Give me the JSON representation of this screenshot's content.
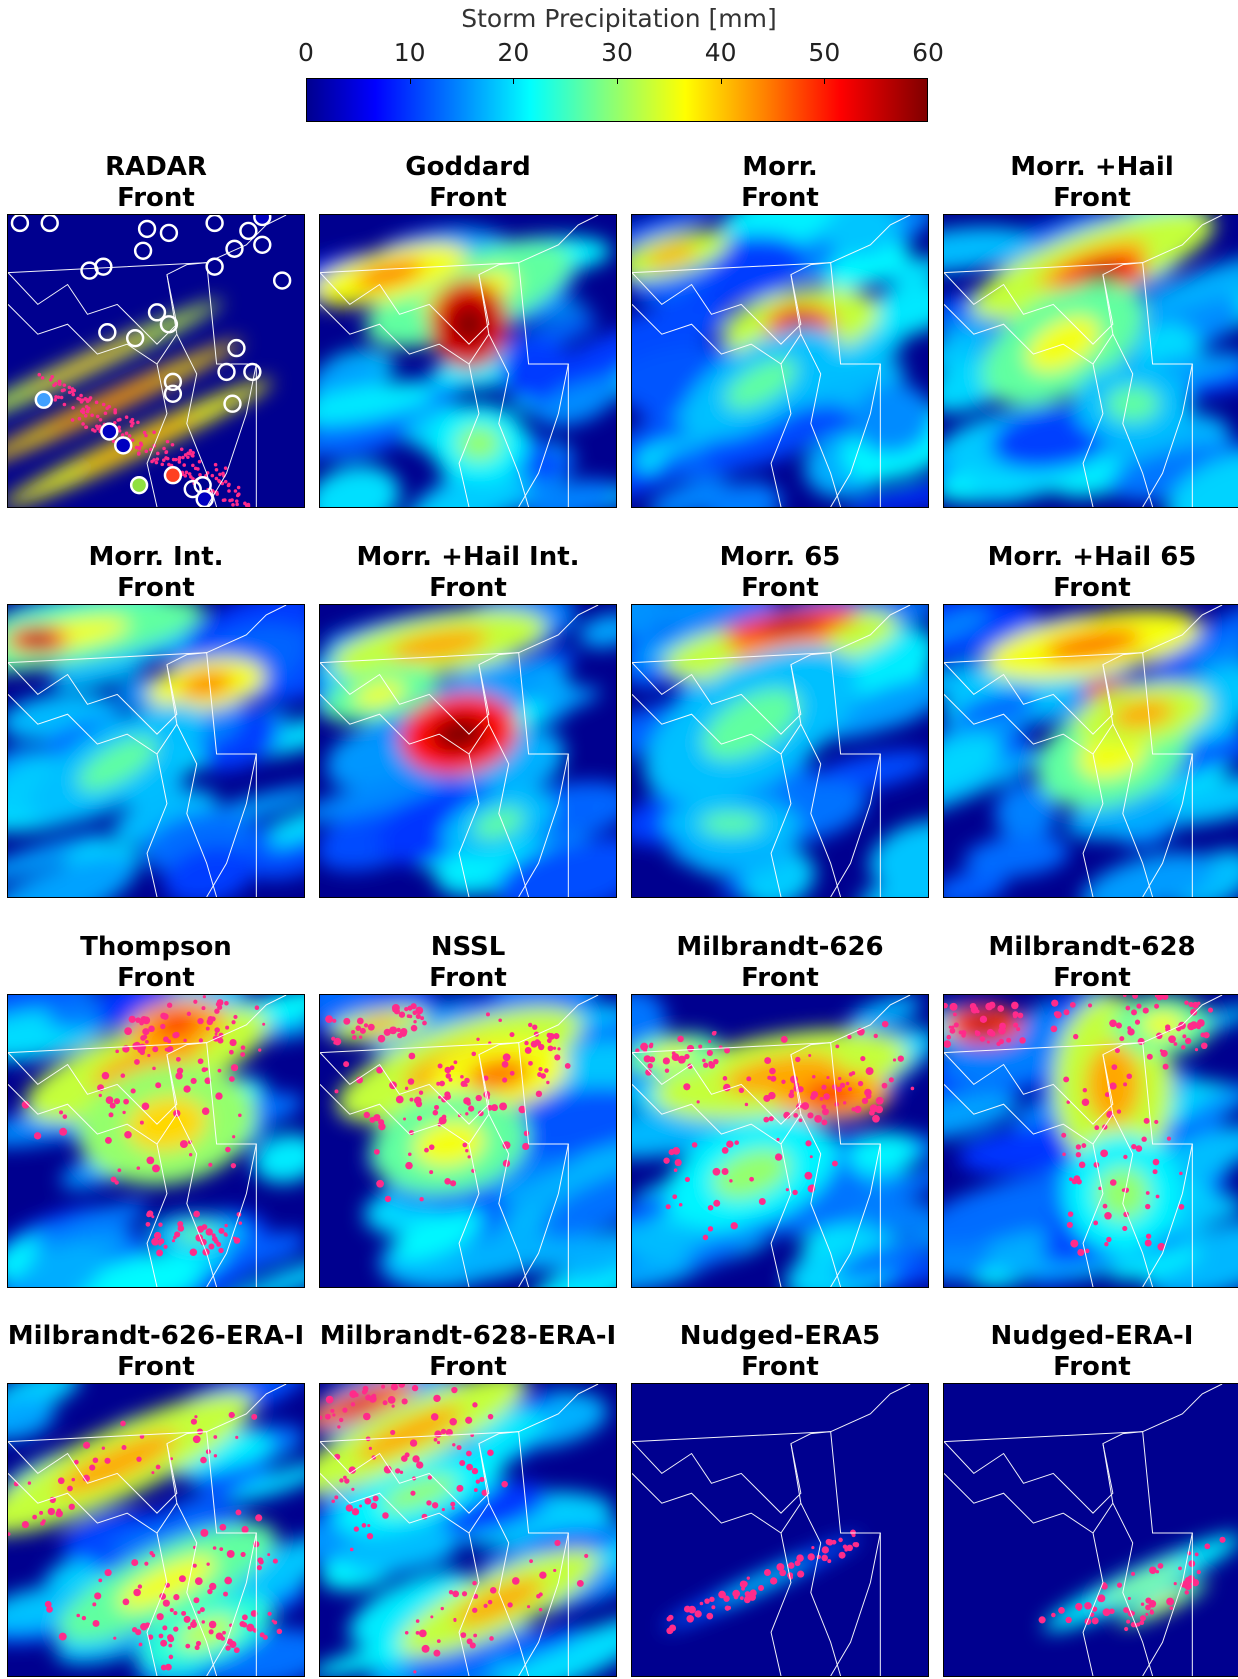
{
  "colorbar": {
    "label": "Storm Precipitation [mm]",
    "ticks": [
      "0",
      "10",
      "20",
      "30",
      "40",
      "50",
      "60"
    ],
    "range": [
      0,
      60
    ],
    "colormap": "jet"
  },
  "panels": [
    {
      "title": "RADAR",
      "subtitle": "Front"
    },
    {
      "title": "Goddard",
      "subtitle": "Front"
    },
    {
      "title": "Morr.",
      "subtitle": "Front"
    },
    {
      "title": "Morr. +Hail",
      "subtitle": "Front"
    },
    {
      "title": "Morr. Int.",
      "subtitle": "Front"
    },
    {
      "title": "Morr. +Hail Int.",
      "subtitle": "Front"
    },
    {
      "title": "Morr. 65",
      "subtitle": "Front"
    },
    {
      "title": "Morr. +Hail 65",
      "subtitle": "Front"
    },
    {
      "title": "Thompson",
      "subtitle": "Front"
    },
    {
      "title": "NSSL",
      "subtitle": "Front"
    },
    {
      "title": "Milbrandt-626",
      "subtitle": "Front"
    },
    {
      "title": "Milbrandt-628",
      "subtitle": "Front"
    },
    {
      "title": "Milbrandt-626-ERA-I",
      "subtitle": "Front"
    },
    {
      "title": "Milbrandt-628-ERA-I",
      "subtitle": "Front"
    },
    {
      "title": "Nudged-ERA5",
      "subtitle": "Front"
    },
    {
      "title": "Nudged-ERA-I",
      "subtitle": "Front"
    }
  ],
  "chart_data": {
    "type": "heatmap",
    "colorbar_label": "Storm Precipitation [mm]",
    "zlim": [
      0,
      60
    ],
    "colormap": "jet",
    "panels": [
      "RADAR Front",
      "Goddard Front",
      "Morr. Front",
      "Morr. +Hail Front",
      "Morr. Int. Front",
      "Morr. +Hail Int. Front",
      "Morr. 65 Front",
      "Morr. +Hail 65 Front",
      "Thompson Front",
      "NSSL Front",
      "Milbrandt-626 Front",
      "Milbrandt-628 Front",
      "Milbrandt-626-ERA-I Front",
      "Milbrandt-628-ERA-I Front",
      "Nudged-ERA5 Front",
      "Nudged-ERA-I Front"
    ],
    "colors": {
      "low": "#00008f",
      "mid": "#00ffff",
      "high": "#800000",
      "hail_markers": "#ff2b8a",
      "map_lines": "#ffffff"
    }
  }
}
